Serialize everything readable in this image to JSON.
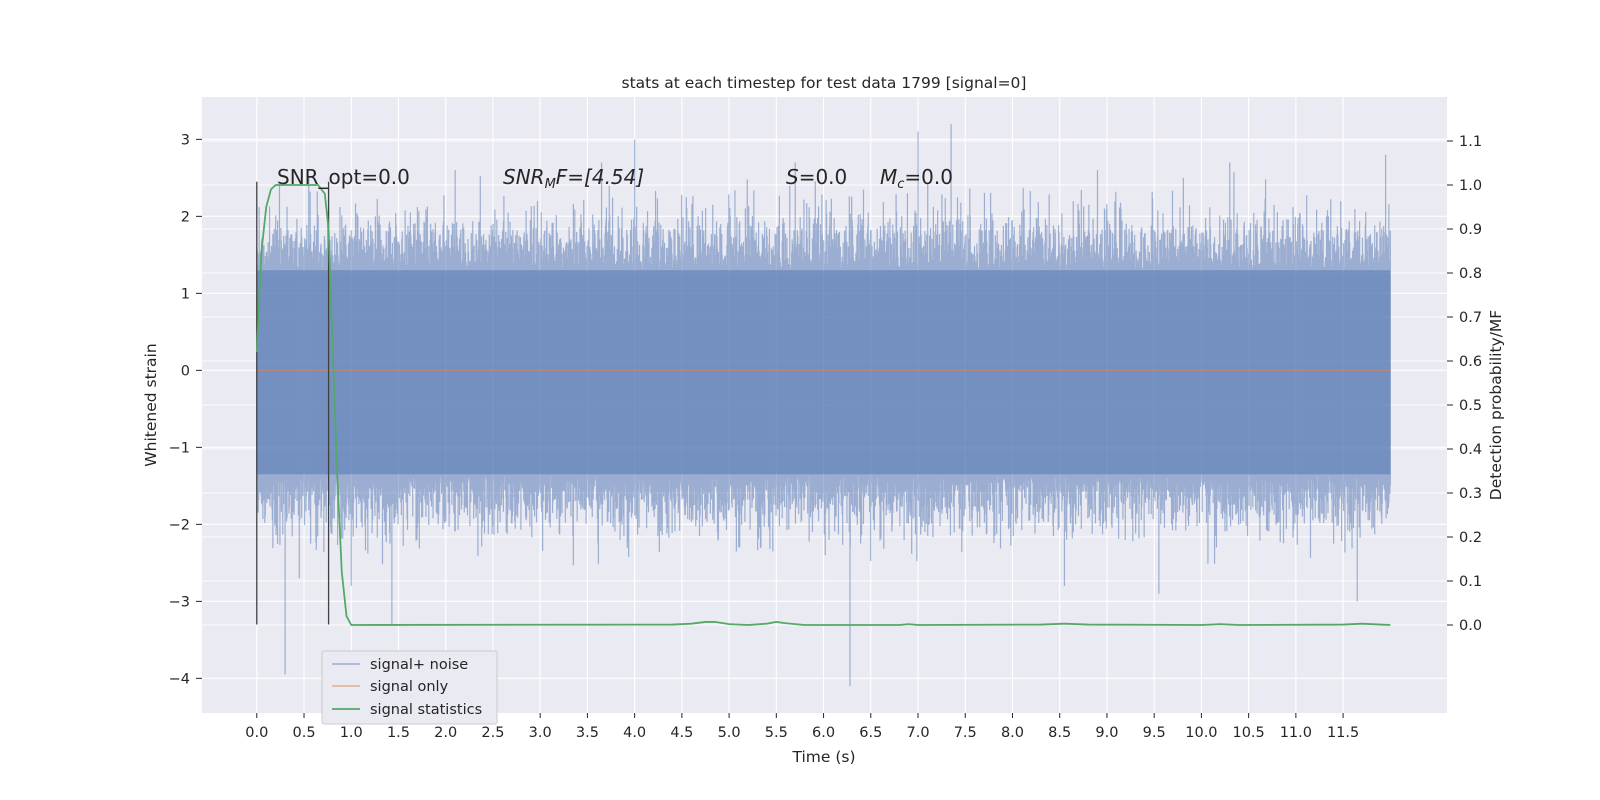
{
  "chart_data": {
    "type": "line",
    "title": "stats at each timestep for test data 1799 [signal=0]",
    "xlabel": "Time (s)",
    "ylabel": "Whitened strain",
    "ylabel_right": "Detection probability/MF",
    "xlim": [
      -0.58,
      12.6
    ],
    "ylim": [
      -4.45,
      3.55
    ],
    "ylim_right": [
      -0.2,
      1.2
    ],
    "x_ticks": [
      "0.0",
      "0.5",
      "1.0",
      "1.5",
      "2.0",
      "2.5",
      "3.0",
      "3.5",
      "4.0",
      "4.5",
      "5.0",
      "5.5",
      "6.0",
      "6.5",
      "7.0",
      "7.5",
      "8.0",
      "8.5",
      "9.0",
      "9.5",
      "10.0",
      "10.5",
      "11.0",
      "11.5"
    ],
    "y_ticks_left": [
      "−4",
      "−3",
      "−2",
      "−1",
      "0",
      "1",
      "2",
      "3"
    ],
    "y_ticks_right": [
      "0.0",
      "0.1",
      "0.2",
      "0.3",
      "0.4",
      "0.5",
      "0.6",
      "0.7",
      "0.8",
      "0.9",
      "1.0",
      "1.1"
    ],
    "grid": true,
    "legend_position": "lower-left",
    "annotations": {
      "snr_opt": "SNR_opt=0.0",
      "snr_mf_prefix": "SNR",
      "snr_mf_sub": "M",
      "snr_mf_suffix": "F=[4.54]",
      "s_prefix": "S",
      "s_value": "=0.0",
      "mc_prefix": "M",
      "mc_sub": "c",
      "mc_value": "=0.0"
    },
    "series": [
      {
        "name": "signal+ noise",
        "color": "#4c72b0",
        "axis": "left",
        "x_range": [
          0.0,
          12.0
        ],
        "envelope": {
          "typical": [
            -1.35,
            1.3
          ],
          "extremes": [
            [
              0.3,
              -3.95
            ],
            [
              0.45,
              -2.7
            ],
            [
              1.0,
              -2.8
            ],
            [
              1.43,
              -3.3
            ],
            [
              4.0,
              3.0
            ],
            [
              6.28,
              -4.1
            ],
            [
              7.0,
              3.1
            ],
            [
              7.35,
              3.2
            ],
            [
              8.55,
              -2.8
            ],
            [
              9.55,
              -2.9
            ],
            [
              11.65,
              -3.0
            ],
            [
              11.95,
              2.8
            ],
            [
              0.55,
              2.5
            ],
            [
              2.1,
              2.6
            ],
            [
              3.65,
              2.7
            ],
            [
              5.7,
              2.7
            ],
            [
              8.9,
              2.6
            ],
            [
              10.3,
              2.7
            ]
          ]
        }
      },
      {
        "name": "signal only",
        "color": "#dd8452",
        "axis": "left",
        "points": [
          [
            0.0,
            0.0
          ],
          [
            12.0,
            0.0
          ]
        ]
      },
      {
        "name": "signal statistics",
        "color": "#55a868",
        "axis": "right",
        "points": [
          [
            0.0,
            0.62
          ],
          [
            0.05,
            0.85
          ],
          [
            0.1,
            0.95
          ],
          [
            0.15,
            0.99
          ],
          [
            0.2,
            1.0
          ],
          [
            0.65,
            1.0
          ],
          [
            0.72,
            0.98
          ],
          [
            0.76,
            0.9
          ],
          [
            0.8,
            0.65
          ],
          [
            0.85,
            0.35
          ],
          [
            0.9,
            0.12
          ],
          [
            0.95,
            0.02
          ],
          [
            1.0,
            0.0
          ],
          [
            4.4,
            0.001
          ],
          [
            4.6,
            0.003
          ],
          [
            4.75,
            0.007
          ],
          [
            4.85,
            0.007
          ],
          [
            5.0,
            0.002
          ],
          [
            5.2,
            0.0
          ],
          [
            5.4,
            0.003
          ],
          [
            5.5,
            0.007
          ],
          [
            5.6,
            0.004
          ],
          [
            5.8,
            0.0
          ],
          [
            6.8,
            0.0
          ],
          [
            6.9,
            0.002
          ],
          [
            7.0,
            0.0
          ],
          [
            8.3,
            0.001
          ],
          [
            8.55,
            0.003
          ],
          [
            8.8,
            0.001
          ],
          [
            10.0,
            0.0
          ],
          [
            10.2,
            0.002
          ],
          [
            10.4,
            0.0
          ],
          [
            11.5,
            0.001
          ],
          [
            11.7,
            0.003
          ],
          [
            11.9,
            0.001
          ],
          [
            12.0,
            0.0
          ]
        ]
      }
    ],
    "vertical_markers": [
      {
        "x": 0.0,
        "y_range": [
          -3.3,
          2.45
        ]
      },
      {
        "x": 0.76,
        "y_range": [
          -3.3,
          2.45
        ]
      }
    ]
  }
}
